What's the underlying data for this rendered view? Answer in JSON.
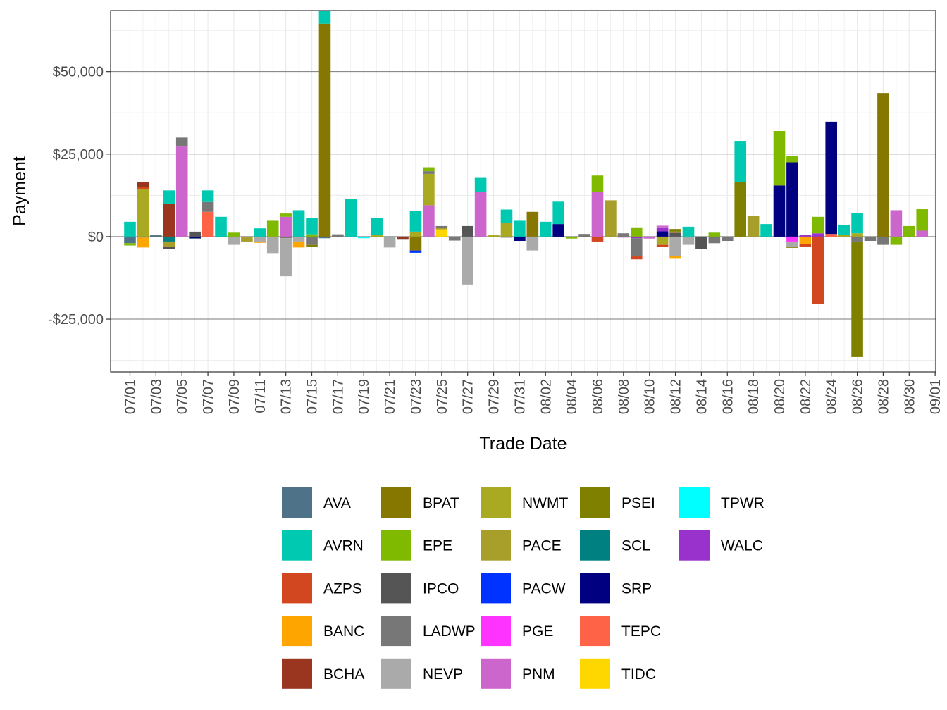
{
  "chart_data": {
    "type": "bar",
    "stacked": true,
    "xlabel": "Trade Date",
    "ylabel": "Payment",
    "ylim": [
      -41000,
      68500
    ],
    "y_ticks": [
      {
        "value": 50000,
        "label": "$50,000"
      },
      {
        "value": 25000,
        "label": "$25,000"
      },
      {
        "value": 0,
        "label": "$0"
      },
      {
        "value": -25000,
        "label": "-$25,000"
      }
    ],
    "x_tick_labels": [
      "07/01",
      "07/03",
      "07/05",
      "07/07",
      "07/09",
      "07/11",
      "07/13",
      "07/15",
      "07/17",
      "07/19",
      "07/21",
      "07/23",
      "07/25",
      "07/27",
      "07/29",
      "07/31",
      "08/02",
      "08/04",
      "08/06",
      "08/08",
      "08/10",
      "08/12",
      "08/14",
      "08/16",
      "08/18",
      "08/20",
      "08/22",
      "08/24",
      "08/26",
      "08/28",
      "08/30",
      "09/01"
    ],
    "grid": true,
    "legend_position": "bottom",
    "series": [
      {
        "name": "AVA",
        "color": "#4e7389"
      },
      {
        "name": "AVRN",
        "color": "#00c9b1"
      },
      {
        "name": "AZPS",
        "color": "#d24720"
      },
      {
        "name": "BANC",
        "color": "#ffa500"
      },
      {
        "name": "BCHA",
        "color": "#9a3520"
      },
      {
        "name": "BPAT",
        "color": "#857700"
      },
      {
        "name": "EPE",
        "color": "#7fba00"
      },
      {
        "name": "IPCO",
        "color": "#555555"
      },
      {
        "name": "LADWP",
        "color": "#777777"
      },
      {
        "name": "NEVP",
        "color": "#aaaaaa"
      },
      {
        "name": "NWMT",
        "color": "#aaaa22"
      },
      {
        "name": "PACE",
        "color": "#a89e2a"
      },
      {
        "name": "PACW",
        "color": "#0033ff"
      },
      {
        "name": "PGE",
        "color": "#ff33ff"
      },
      {
        "name": "PNM",
        "color": "#cc66cc"
      },
      {
        "name": "PSEI",
        "color": "#808000"
      },
      {
        "name": "SCL",
        "color": "#008080"
      },
      {
        "name": "SRP",
        "color": "#000080"
      },
      {
        "name": "TEPC",
        "color": "#ff6347"
      },
      {
        "name": "TIDC",
        "color": "#ffd700"
      },
      {
        "name": "TPWR",
        "color": "#00ffff"
      },
      {
        "name": "WALC",
        "color": "#9932cc"
      }
    ],
    "days": [
      {
        "date": "07/01",
        "positive": [
          [
            "AVRN",
            4500
          ]
        ],
        "negative": [
          [
            "AVA",
            -2000
          ],
          [
            "EPE",
            -700
          ]
        ]
      },
      {
        "date": "07/02",
        "positive": [
          [
            "NWMT",
            14500
          ],
          [
            "AZPS",
            500
          ],
          [
            "BCHA",
            1500
          ]
        ],
        "negative": [
          [
            "AVA",
            -300
          ],
          [
            "BANC",
            -3000
          ]
        ]
      },
      {
        "date": "07/03",
        "positive": [
          [
            "AVA",
            300
          ],
          [
            "LADWP",
            300
          ]
        ],
        "negative": []
      },
      {
        "date": "07/04",
        "positive": [
          [
            "BCHA",
            10000
          ],
          [
            "AVRN",
            4000
          ]
        ],
        "negative": [
          [
            "SCL",
            -1500
          ],
          [
            "PACE",
            -1500
          ],
          [
            "IPCO",
            -800
          ]
        ]
      },
      {
        "date": "07/05",
        "positive": [
          [
            "PNM",
            27500
          ],
          [
            "LADWP",
            2500
          ]
        ],
        "negative": []
      },
      {
        "date": "07/06",
        "positive": [
          [
            "IPCO",
            1500
          ]
        ],
        "negative": [
          [
            "SRP",
            -500
          ],
          [
            "AVA",
            -300
          ]
        ]
      },
      {
        "date": "07/07",
        "positive": [
          [
            "TEPC",
            7500
          ],
          [
            "LADWP",
            3000
          ],
          [
            "AVRN",
            3500
          ]
        ],
        "negative": []
      },
      {
        "date": "07/08",
        "positive": [
          [
            "AVRN",
            6000
          ]
        ],
        "negative": []
      },
      {
        "date": "07/09",
        "positive": [
          [
            "EPE",
            1200
          ]
        ],
        "negative": [
          [
            "NEVP",
            -2500
          ]
        ]
      },
      {
        "date": "07/10",
        "positive": [],
        "negative": [
          [
            "PACE",
            -1500
          ]
        ]
      },
      {
        "date": "07/11",
        "positive": [
          [
            "AVRN",
            2500
          ]
        ],
        "negative": [
          [
            "NEVP",
            -1500
          ],
          [
            "BANC",
            -400
          ]
        ]
      },
      {
        "date": "07/12",
        "positive": [
          [
            "EPE",
            4800
          ]
        ],
        "negative": [
          [
            "NEVP",
            -5000
          ]
        ]
      },
      {
        "date": "07/13",
        "positive": [
          [
            "PNM",
            6000
          ],
          [
            "EPE",
            1000
          ]
        ],
        "negative": [
          [
            "LADWP",
            -500
          ],
          [
            "NEVP",
            -11500
          ]
        ]
      },
      {
        "date": "07/14",
        "positive": [
          [
            "AVRN",
            8000
          ]
        ],
        "negative": [
          [
            "NEVP",
            -1500
          ],
          [
            "BANC",
            -1800
          ]
        ]
      },
      {
        "date": "07/15",
        "positive": [
          [
            "EPE",
            700
          ],
          [
            "AVRN",
            5000
          ]
        ],
        "negative": [
          [
            "LADWP",
            -2500
          ],
          [
            "PSEI",
            -700
          ]
        ]
      },
      {
        "date": "07/16",
        "positive": [
          [
            "BPAT",
            64500
          ],
          [
            "AVRN",
            4000
          ]
        ],
        "negative": [
          [
            "AVA",
            -500
          ]
        ]
      },
      {
        "date": "07/17",
        "positive": [
          [
            "LADWP",
            700
          ]
        ],
        "negative": []
      },
      {
        "date": "07/18",
        "positive": [
          [
            "AVRN",
            11500
          ]
        ],
        "negative": []
      },
      {
        "date": "07/19",
        "positive": [],
        "negative": [
          [
            "AVA",
            -200
          ],
          [
            "TPWR",
            -300
          ]
        ]
      },
      {
        "date": "07/20",
        "positive": [
          [
            "NWMT",
            500
          ],
          [
            "AVRN",
            5200
          ]
        ],
        "negative": []
      },
      {
        "date": "07/21",
        "positive": [],
        "negative": [
          [
            "AVA",
            -300
          ],
          [
            "NEVP",
            -3000
          ]
        ]
      },
      {
        "date": "07/22",
        "positive": [],
        "negative": [
          [
            "BCHA",
            -700
          ],
          [
            "NEVP",
            -300
          ]
        ]
      },
      {
        "date": "07/23",
        "positive": [
          [
            "NWMT",
            1500
          ],
          [
            "AVRN",
            6200
          ]
        ],
        "negative": [
          [
            "BPAT",
            -4200
          ],
          [
            "PACW",
            -700
          ]
        ]
      },
      {
        "date": "07/24",
        "positive": [
          [
            "PNM",
            9500
          ],
          [
            "NWMT",
            9500
          ],
          [
            "LADWP",
            800
          ],
          [
            "EPE",
            1200
          ]
        ],
        "negative": []
      },
      {
        "date": "07/25",
        "positive": [
          [
            "TIDC",
            2200
          ],
          [
            "PACE",
            500
          ],
          [
            "LADWP",
            500
          ]
        ],
        "negative": []
      },
      {
        "date": "07/26",
        "positive": [],
        "negative": [
          [
            "LADWP",
            -1200
          ]
        ]
      },
      {
        "date": "07/27",
        "positive": [
          [
            "IPCO",
            3200
          ]
        ],
        "negative": [
          [
            "NEVP",
            -14500
          ]
        ]
      },
      {
        "date": "07/28",
        "positive": [
          [
            "PNM",
            13500
          ],
          [
            "AVRN",
            4500
          ]
        ],
        "negative": []
      },
      {
        "date": "07/29",
        "positive": [
          [
            "NWMT",
            400
          ]
        ],
        "negative": []
      },
      {
        "date": "07/30",
        "positive": [
          [
            "NWMT",
            4200
          ],
          [
            "AVRN",
            4000
          ]
        ],
        "negative": [
          [
            "IPCO",
            -300
          ]
        ]
      },
      {
        "date": "07/31",
        "positive": [
          [
            "AVRN",
            4800
          ]
        ],
        "negative": [
          [
            "SRP",
            -1300
          ]
        ]
      },
      {
        "date": "08/01",
        "positive": [
          [
            "BPAT",
            7500
          ]
        ],
        "negative": [
          [
            "NEVP",
            -4200
          ]
        ]
      },
      {
        "date": "08/02",
        "positive": [
          [
            "AVRN",
            4500
          ]
        ],
        "negative": []
      },
      {
        "date": "08/03",
        "positive": [
          [
            "SRP",
            3800
          ],
          [
            "AVRN",
            6800
          ]
        ],
        "negative": []
      },
      {
        "date": "08/04",
        "positive": [],
        "negative": [
          [
            "EPE",
            -600
          ]
        ]
      },
      {
        "date": "08/05",
        "positive": [
          [
            "LADWP",
            800
          ]
        ],
        "negative": []
      },
      {
        "date": "08/06",
        "positive": [
          [
            "PNM",
            13500
          ],
          [
            "EPE",
            5000
          ]
        ],
        "negative": [
          [
            "AZPS",
            -1500
          ]
        ]
      },
      {
        "date": "08/07",
        "positive": [
          [
            "PACE",
            11000
          ]
        ],
        "negative": []
      },
      {
        "date": "08/08",
        "positive": [
          [
            "LADWP",
            1000
          ]
        ],
        "negative": [
          [
            "PNM",
            -300
          ]
        ]
      },
      {
        "date": "08/09",
        "positive": [
          [
            "EPE",
            2800
          ]
        ],
        "negative": [
          [
            "WALC",
            -500
          ],
          [
            "LADWP",
            -5500
          ],
          [
            "AZPS",
            -900
          ]
        ]
      },
      {
        "date": "08/10",
        "positive": [],
        "negative": [
          [
            "PNM",
            -600
          ]
        ]
      },
      {
        "date": "08/11",
        "positive": [
          [
            "SRP",
            1600
          ],
          [
            "WALC",
            1200
          ],
          [
            "PNM",
            500
          ]
        ],
        "negative": [
          [
            "NWMT",
            -2500
          ],
          [
            "AZPS",
            -700
          ]
        ]
      },
      {
        "date": "08/12",
        "positive": [
          [
            "IPCO",
            1200
          ],
          [
            "BANC",
            300
          ],
          [
            "PSEI",
            800
          ]
        ],
        "negative": [
          [
            "NEVP",
            -6000
          ],
          [
            "BANC",
            -500
          ]
        ]
      },
      {
        "date": "08/13",
        "positive": [
          [
            "AVRN",
            3000
          ]
        ],
        "negative": [
          [
            "NEVP",
            -2500
          ]
        ]
      },
      {
        "date": "08/14",
        "positive": [],
        "negative": [
          [
            "IPCO",
            -3800
          ]
        ]
      },
      {
        "date": "08/15",
        "positive": [
          [
            "EPE",
            1200
          ]
        ],
        "negative": [
          [
            "LADWP",
            -2000
          ]
        ]
      },
      {
        "date": "08/16",
        "positive": [],
        "negative": [
          [
            "LADWP",
            -1300
          ]
        ]
      },
      {
        "date": "08/17",
        "positive": [
          [
            "PSEI",
            16500
          ],
          [
            "AVRN",
            12500
          ]
        ],
        "negative": []
      },
      {
        "date": "08/18",
        "positive": [
          [
            "PACE",
            6200
          ]
        ],
        "negative": []
      },
      {
        "date": "08/19",
        "positive": [
          [
            "AVRN",
            3800
          ]
        ],
        "negative": []
      },
      {
        "date": "08/20",
        "positive": [
          [
            "SRP",
            15500
          ],
          [
            "EPE",
            16500
          ]
        ],
        "negative": []
      },
      {
        "date": "08/21",
        "positive": [
          [
            "SRP",
            22500
          ],
          [
            "EPE",
            2000
          ]
        ],
        "negative": [
          [
            "PGE",
            -1500
          ],
          [
            "NEVP",
            -1500
          ],
          [
            "BPAT",
            -400
          ]
        ]
      },
      {
        "date": "08/22",
        "positive": [
          [
            "WALC",
            500
          ]
        ],
        "negative": [
          [
            "BANC",
            -2200
          ],
          [
            "AZPS",
            -800
          ]
        ]
      },
      {
        "date": "08/23",
        "positive": [
          [
            "WALC",
            1000
          ],
          [
            "EPE",
            5000
          ]
        ],
        "negative": [
          [
            "AZPS",
            -20500
          ]
        ]
      },
      {
        "date": "08/24",
        "positive": [
          [
            "TEPC",
            800
          ],
          [
            "SRP",
            34000
          ]
        ],
        "negative": []
      },
      {
        "date": "08/25",
        "positive": [
          [
            "NWMT",
            500
          ],
          [
            "AVRN",
            3000
          ]
        ],
        "negative": []
      },
      {
        "date": "08/26",
        "positive": [
          [
            "NWMT",
            1000
          ],
          [
            "AVRN",
            6200
          ]
        ],
        "negative": [
          [
            "LADWP",
            -1500
          ],
          [
            "PSEI",
            -35000
          ]
        ]
      },
      {
        "date": "08/27",
        "positive": [],
        "negative": [
          [
            "LADWP",
            -1300
          ]
        ]
      },
      {
        "date": "08/28",
        "positive": [
          [
            "BPAT",
            43500
          ]
        ],
        "negative": [
          [
            "LADWP",
            -2500
          ]
        ]
      },
      {
        "date": "08/29",
        "positive": [
          [
            "PNM",
            8000
          ]
        ],
        "negative": [
          [
            "EPE",
            -2500
          ]
        ]
      },
      {
        "date": "08/30",
        "positive": [
          [
            "EPE",
            3200
          ]
        ],
        "negative": []
      },
      {
        "date": "08/31",
        "positive": [
          [
            "PNM",
            1800
          ],
          [
            "EPE",
            6500
          ]
        ],
        "negative": []
      }
    ]
  }
}
